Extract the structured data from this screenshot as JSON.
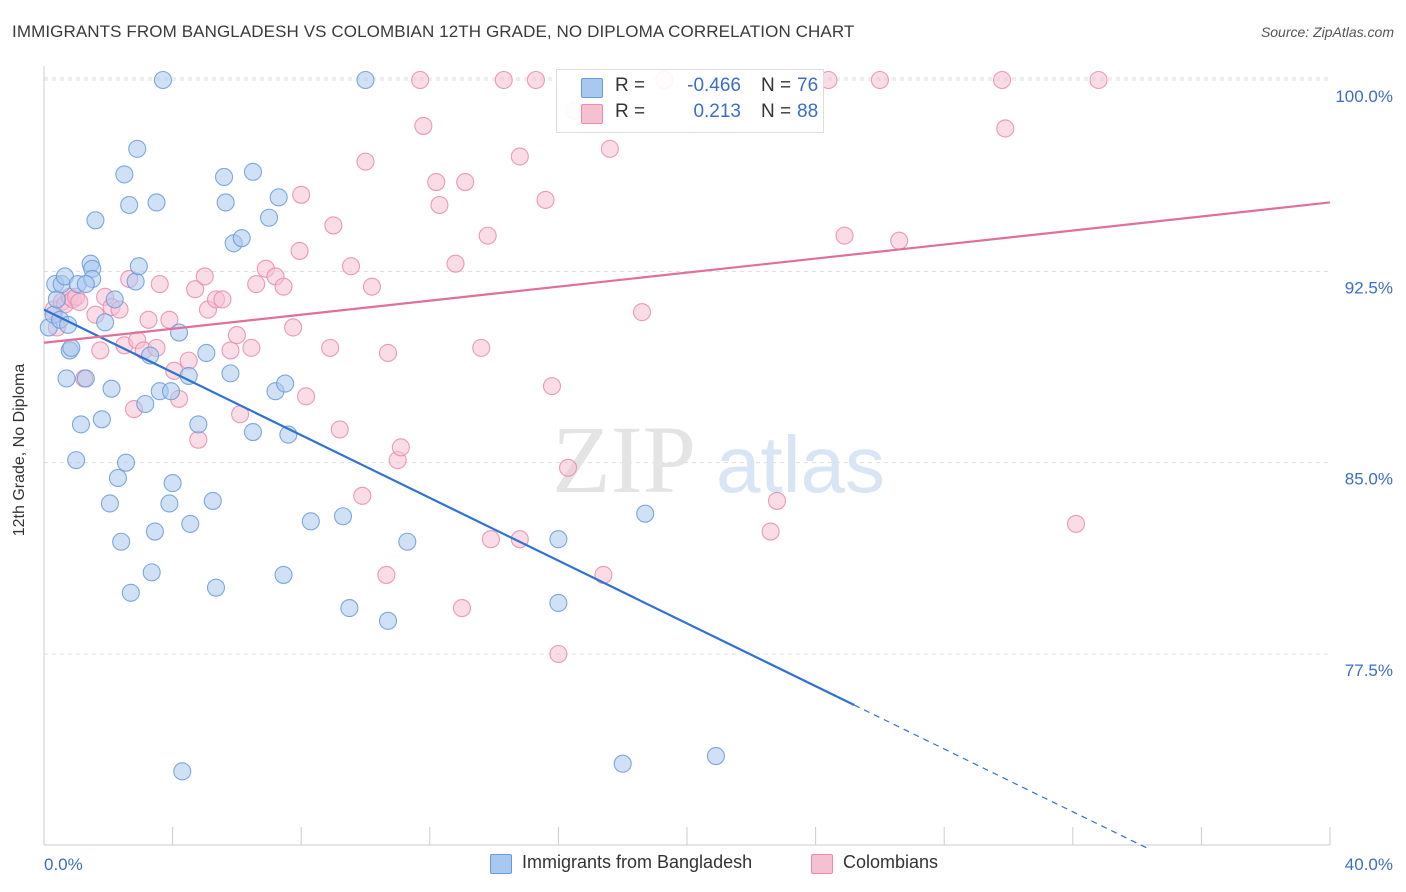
{
  "header": {
    "title": "IMMIGRANTS FROM BANGLADESH VS COLOMBIAN 12TH GRADE, NO DIPLOMA CORRELATION CHART",
    "source": "Source: ZipAtlas.com"
  },
  "watermark": {
    "zip": "ZIP",
    "atlas": "atlas"
  },
  "colors": {
    "blue_fill": "#a9c8ef",
    "blue_stroke": "#6a9ad8",
    "blue_line": "#2f72d2",
    "pink_fill": "#f6c0d3",
    "pink_stroke": "#e88aab",
    "pink_line": "#e0709a",
    "tick_label": "#3b6fc4",
    "grid": "#dddddd"
  },
  "legend_top": {
    "rows": [
      {
        "r_label": "R =",
        "r_value": "-0.466",
        "n_label": "N =",
        "n_value": "76"
      },
      {
        "r_label": "R =",
        "r_value": "0.213",
        "n_label": "N =",
        "n_value": "88"
      }
    ]
  },
  "legend_bottom": {
    "items": [
      {
        "label": "Immigrants from Bangladesh"
      },
      {
        "label": "Colombians"
      }
    ]
  },
  "chart_data": {
    "type": "scatter",
    "title": "IMMIGRANTS FROM BANGLADESH VS COLOMBIAN 12TH GRADE, NO DIPLOMA CORRELATION CHART",
    "xlabel": "",
    "ylabel": "12th Grade, No Diploma",
    "xlim": [
      0,
      40
    ],
    "ylim": [
      70,
      101
    ],
    "x_tick_labels": [
      "0.0%",
      "40.0%"
    ],
    "y_ticks": [
      77.5,
      85.0,
      92.5,
      100.0
    ],
    "y_tick_labels": [
      "77.5%",
      "85.0%",
      "92.5%",
      "100.0%"
    ],
    "grid": true,
    "legend_position": "top-center",
    "series": [
      {
        "name": "Immigrants from Bangladesh",
        "R": -0.466,
        "N": 76,
        "trend": {
          "x0": 0,
          "y0": 91.0,
          "x1": 25.2,
          "y1": 75.5,
          "dashed_to_x": 34.3,
          "dashed_to_y": 69.9
        },
        "points": [
          [
            0.15,
            90.3
          ],
          [
            0.3,
            90.8
          ],
          [
            0.35,
            92.0
          ],
          [
            0.4,
            91.4
          ],
          [
            0.5,
            90.6
          ],
          [
            0.55,
            92.0
          ],
          [
            0.65,
            92.3
          ],
          [
            0.75,
            90.4
          ],
          [
            0.7,
            88.3
          ],
          [
            0.8,
            89.4
          ],
          [
            0.85,
            89.5
          ],
          [
            1.0,
            85.1
          ],
          [
            1.05,
            92.0
          ],
          [
            1.15,
            86.5
          ],
          [
            1.3,
            88.3
          ],
          [
            1.45,
            92.8
          ],
          [
            1.5,
            92.6
          ],
          [
            1.5,
            92.2
          ],
          [
            1.6,
            94.5
          ],
          [
            1.8,
            86.7
          ],
          [
            1.9,
            90.5
          ],
          [
            2.05,
            83.4
          ],
          [
            2.1,
            87.9
          ],
          [
            2.2,
            91.4
          ],
          [
            2.3,
            84.4
          ],
          [
            2.4,
            81.9
          ],
          [
            2.5,
            96.3
          ],
          [
            2.55,
            85.0
          ],
          [
            2.65,
            95.1
          ],
          [
            2.7,
            79.9
          ],
          [
            2.85,
            92.1
          ],
          [
            2.9,
            97.3
          ],
          [
            2.95,
            92.7
          ],
          [
            3.15,
            87.3
          ],
          [
            3.3,
            89.2
          ],
          [
            3.35,
            80.7
          ],
          [
            3.45,
            82.3
          ],
          [
            3.5,
            95.2
          ],
          [
            3.6,
            87.8
          ],
          [
            3.7,
            100.0
          ],
          [
            3.9,
            83.4
          ],
          [
            3.95,
            87.8
          ],
          [
            4.0,
            84.2
          ],
          [
            4.2,
            90.1
          ],
          [
            4.3,
            72.9
          ],
          [
            4.5,
            88.4
          ],
          [
            4.55,
            82.6
          ],
          [
            4.8,
            86.5
          ],
          [
            5.05,
            89.3
          ],
          [
            5.25,
            83.5
          ],
          [
            5.35,
            80.1
          ],
          [
            5.6,
            96.2
          ],
          [
            5.65,
            95.2
          ],
          [
            5.8,
            88.5
          ],
          [
            5.9,
            93.6
          ],
          [
            6.15,
            93.8
          ],
          [
            6.5,
            96.4
          ],
          [
            6.5,
            86.2
          ],
          [
            7.0,
            94.6
          ],
          [
            7.2,
            87.8
          ],
          [
            7.3,
            95.4
          ],
          [
            7.45,
            80.6
          ],
          [
            7.5,
            88.1
          ],
          [
            7.6,
            86.1
          ],
          [
            8.3,
            82.7
          ],
          [
            9.3,
            82.9
          ],
          [
            9.5,
            79.3
          ],
          [
            10.0,
            100.0
          ],
          [
            10.7,
            78.8
          ],
          [
            11.3,
            81.9
          ],
          [
            16.0,
            82.0
          ],
          [
            16.0,
            79.5
          ],
          [
            18.0,
            73.2
          ],
          [
            18.7,
            83.0
          ],
          [
            20.9,
            73.5
          ],
          [
            1.3,
            92.0
          ]
        ]
      },
      {
        "name": "Colombians",
        "R": 0.213,
        "N": 88,
        "trend": {
          "x0": 0,
          "y0": 89.7,
          "x1": 40,
          "y1": 95.2
        },
        "points": [
          [
            0.3,
            91.0
          ],
          [
            0.4,
            90.3
          ],
          [
            0.55,
            91.3
          ],
          [
            0.65,
            91.2
          ],
          [
            0.8,
            91.5
          ],
          [
            0.9,
            91.4
          ],
          [
            1.0,
            91.5
          ],
          [
            1.1,
            91.3
          ],
          [
            1.25,
            88.3
          ],
          [
            1.6,
            90.8
          ],
          [
            1.75,
            89.4
          ],
          [
            1.9,
            91.5
          ],
          [
            2.1,
            91.1
          ],
          [
            2.35,
            91.0
          ],
          [
            2.5,
            89.6
          ],
          [
            2.65,
            92.2
          ],
          [
            2.8,
            87.1
          ],
          [
            2.9,
            89.8
          ],
          [
            3.1,
            89.4
          ],
          [
            3.25,
            90.6
          ],
          [
            3.5,
            89.5
          ],
          [
            3.6,
            92.0
          ],
          [
            3.9,
            90.6
          ],
          [
            4.05,
            88.6
          ],
          [
            4.2,
            87.5
          ],
          [
            4.5,
            89.0
          ],
          [
            4.7,
            91.8
          ],
          [
            4.8,
            85.9
          ],
          [
            5.0,
            92.3
          ],
          [
            5.1,
            91.0
          ],
          [
            5.35,
            91.4
          ],
          [
            5.55,
            91.4
          ],
          [
            5.8,
            89.4
          ],
          [
            6.0,
            90.0
          ],
          [
            6.1,
            86.9
          ],
          [
            6.45,
            89.5
          ],
          [
            6.6,
            92.0
          ],
          [
            6.9,
            92.6
          ],
          [
            7.2,
            92.3
          ],
          [
            7.45,
            91.9
          ],
          [
            7.75,
            90.3
          ],
          [
            7.95,
            93.3
          ],
          [
            8.0,
            95.5
          ],
          [
            8.15,
            87.6
          ],
          [
            8.9,
            89.5
          ],
          [
            9.0,
            94.3
          ],
          [
            9.2,
            86.3
          ],
          [
            9.55,
            92.7
          ],
          [
            9.9,
            83.7
          ],
          [
            10.0,
            96.8
          ],
          [
            10.2,
            91.9
          ],
          [
            10.65,
            80.6
          ],
          [
            10.7,
            89.3
          ],
          [
            11.0,
            85.1
          ],
          [
            11.1,
            85.6
          ],
          [
            11.7,
            100.0
          ],
          [
            11.8,
            98.2
          ],
          [
            12.2,
            96.0
          ],
          [
            12.3,
            95.1
          ],
          [
            12.8,
            92.8
          ],
          [
            13.0,
            79.3
          ],
          [
            13.1,
            96.0
          ],
          [
            13.6,
            89.5
          ],
          [
            13.8,
            93.9
          ],
          [
            13.9,
            82.0
          ],
          [
            14.3,
            100.0
          ],
          [
            14.8,
            97.0
          ],
          [
            14.8,
            82.0
          ],
          [
            15.3,
            100.0
          ],
          [
            15.6,
            95.3
          ],
          [
            15.8,
            88.0
          ],
          [
            16.0,
            77.5
          ],
          [
            16.3,
            84.8
          ],
          [
            16.5,
            98.8
          ],
          [
            17.4,
            80.6
          ],
          [
            17.6,
            97.3
          ],
          [
            18.6,
            90.9
          ],
          [
            19.3,
            100.0
          ],
          [
            22.6,
            82.3
          ],
          [
            22.8,
            83.5
          ],
          [
            24.4,
            100.0
          ],
          [
            24.9,
            93.9
          ],
          [
            26.0,
            100.0
          ],
          [
            26.6,
            93.7
          ],
          [
            29.8,
            100.0
          ],
          [
            29.9,
            98.1
          ],
          [
            32.1,
            82.6
          ],
          [
            32.8,
            100.0
          ]
        ]
      }
    ]
  },
  "axes": {
    "y_title": "12th Grade, No Diploma"
  }
}
